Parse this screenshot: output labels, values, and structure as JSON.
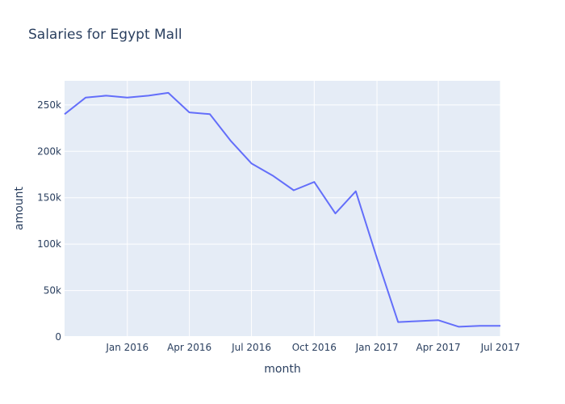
{
  "chart_data": {
    "type": "line",
    "title": "Salaries for Egypt Mall",
    "xlabel": "month",
    "ylabel": "amount",
    "x_tick_labels": [
      "Jan 2016",
      "Apr 2016",
      "Jul 2016",
      "Oct 2016",
      "Jan 2017",
      "Apr 2017",
      "Jul 2017"
    ],
    "y_tick_labels": [
      "0",
      "50k",
      "100k",
      "150k",
      "200k",
      "250k"
    ],
    "x_ticks": [
      "2016-01-01",
      "2016-04-01",
      "2016-07-01",
      "2016-10-01",
      "2017-01-01",
      "2017-04-01",
      "2017-07-01"
    ],
    "y_ticks": [
      0,
      50000,
      100000,
      150000,
      200000,
      250000
    ],
    "xlim": [
      "2015-10-01",
      "2017-07-01"
    ],
    "ylim": [
      0,
      276000
    ],
    "grid": true,
    "line_color": "#636efa",
    "series": [
      {
        "x": [
          "2015-10-01",
          "2015-11-01",
          "2015-12-01",
          "2016-01-01",
          "2016-02-01",
          "2016-03-01",
          "2016-04-01",
          "2016-05-01",
          "2016-06-01",
          "2016-07-01",
          "2016-08-01",
          "2016-09-01",
          "2016-10-01",
          "2016-11-01",
          "2016-12-01",
          "2017-01-01",
          "2017-02-01",
          "2017-03-01",
          "2017-04-01",
          "2017-05-01",
          "2017-06-01",
          "2017-07-01"
        ],
        "values": [
          240000,
          258000,
          260000,
          258000,
          260000,
          263000,
          242000,
          240000,
          211000,
          187000,
          174000,
          158000,
          167000,
          133000,
          157000,
          85000,
          16000,
          17000,
          18000,
          11000,
          12000,
          12000
        ]
      }
    ]
  }
}
